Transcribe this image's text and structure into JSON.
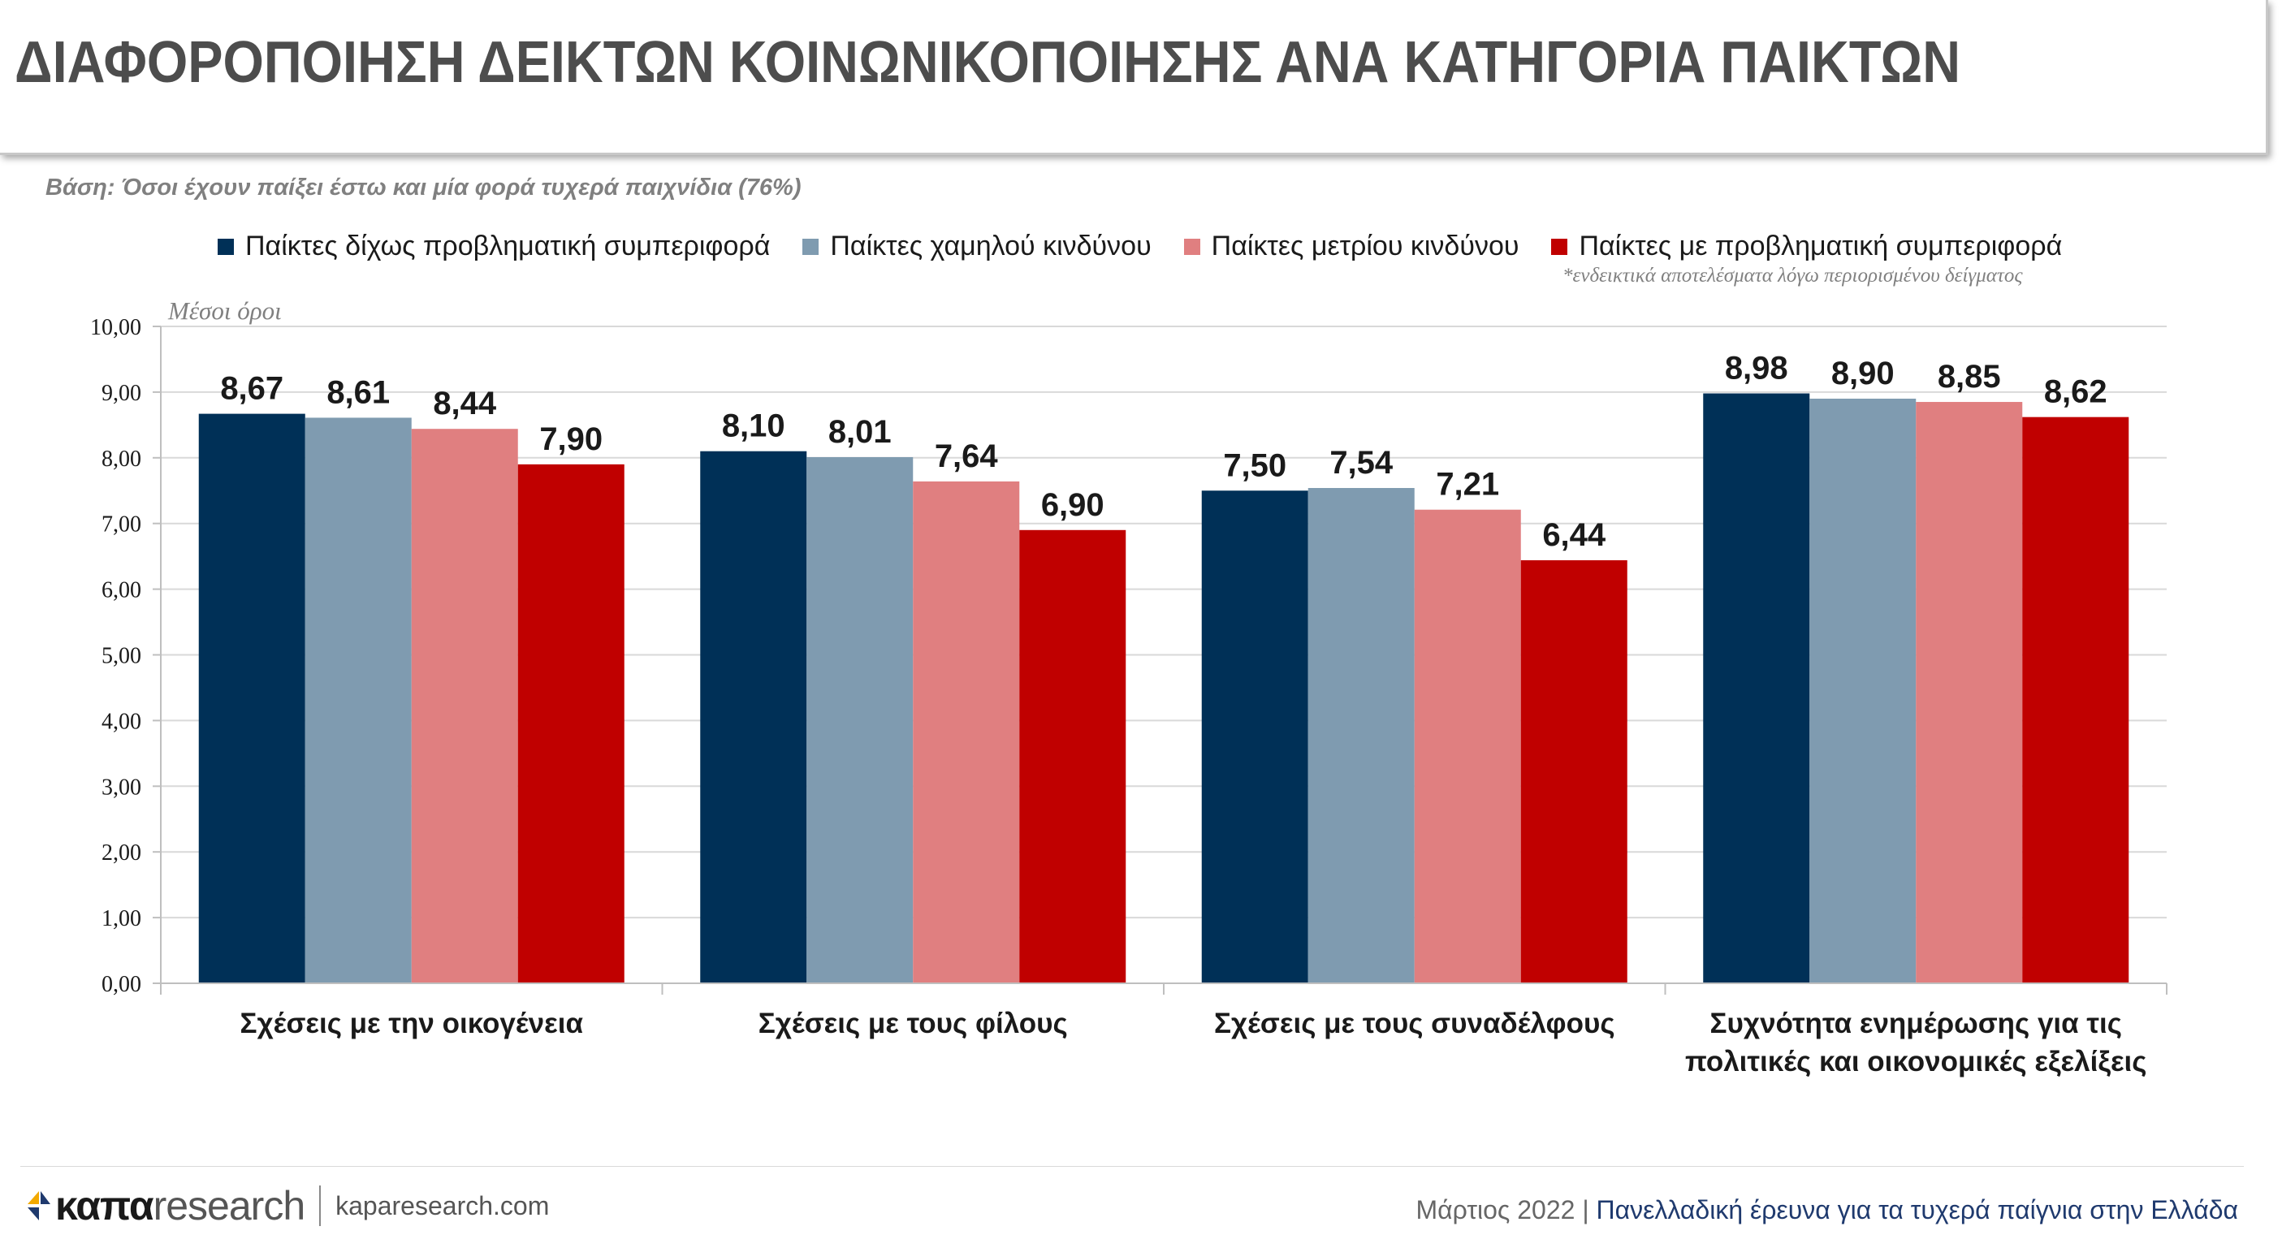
{
  "title": "ΔΙΑΦΟΡΟΠΟΙΗΣΗ ΔΕΙΚΤΩΝ ΚΟΙΝΩΝΙΚΟΠΟΙΗΣΗΣ ΑΝΑ ΚΑΤΗΓΟΡΙΑ ΠΑΙΚΤΩΝ",
  "base_note": "Βάση: Όσοι έχουν παίξει έστω και μία φορά τυχερά παιχνίδια (76%)",
  "small_note": "*ενδεικτικά αποτελέσματα λόγω περιορισμένου δείγματος",
  "footer": {
    "brand_bold": "καπα",
    "brand_light": "research",
    "site": "kaparesearch.com",
    "date": "Μάρτιος 2022 |",
    "survey": "Πανελλαδική έρευνα για τα τυχερά παίγνια στην Ελλάδα"
  },
  "chart_data": {
    "type": "bar",
    "ylabel": "Μέσοι όροι",
    "ylim": [
      0,
      10
    ],
    "ytick_step": 1,
    "ytick_labels": [
      "0,00",
      "1,00",
      "2,00",
      "3,00",
      "4,00",
      "5,00",
      "6,00",
      "7,00",
      "8,00",
      "9,00",
      "10,00"
    ],
    "legend_position": "top",
    "grid": true,
    "categories": [
      [
        "Σχέσεις με την οικογένεια"
      ],
      [
        "Σχέσεις με τους φίλους"
      ],
      [
        "Σχέσεις με τους συναδέλφους"
      ],
      [
        "Συχνότητα ενημέρωσης για τις",
        "πολιτικές και οικονομικές εξελίξεις"
      ]
    ],
    "series": [
      {
        "name": "Παίκτες δίχως προβληματική συμπεριφορά",
        "color": "#003057",
        "values": [
          8.67,
          8.1,
          7.5,
          8.98
        ],
        "labels": [
          "8,67",
          "8,10",
          "7,50",
          "8,98"
        ]
      },
      {
        "name": "Παίκτες χαμηλού κινδύνου",
        "color": "#7f9bb0",
        "values": [
          8.61,
          8.01,
          7.54,
          8.9
        ],
        "labels": [
          "8,61",
          "8,01",
          "7,54",
          "8,90"
        ]
      },
      {
        "name": "Παίκτες μετρίου κινδύνου",
        "color": "#e07f80",
        "values": [
          8.44,
          7.64,
          7.21,
          8.85
        ],
        "labels": [
          "8,44",
          "7,64",
          "7,21",
          "8,85"
        ]
      },
      {
        "name": "Παίκτες με προβληματική συμπεριφορά",
        "color": "#c00000",
        "values": [
          7.9,
          6.9,
          6.44,
          8.62
        ],
        "labels": [
          "7,90",
          "6,90",
          "6,44",
          "8,62"
        ]
      }
    ]
  }
}
